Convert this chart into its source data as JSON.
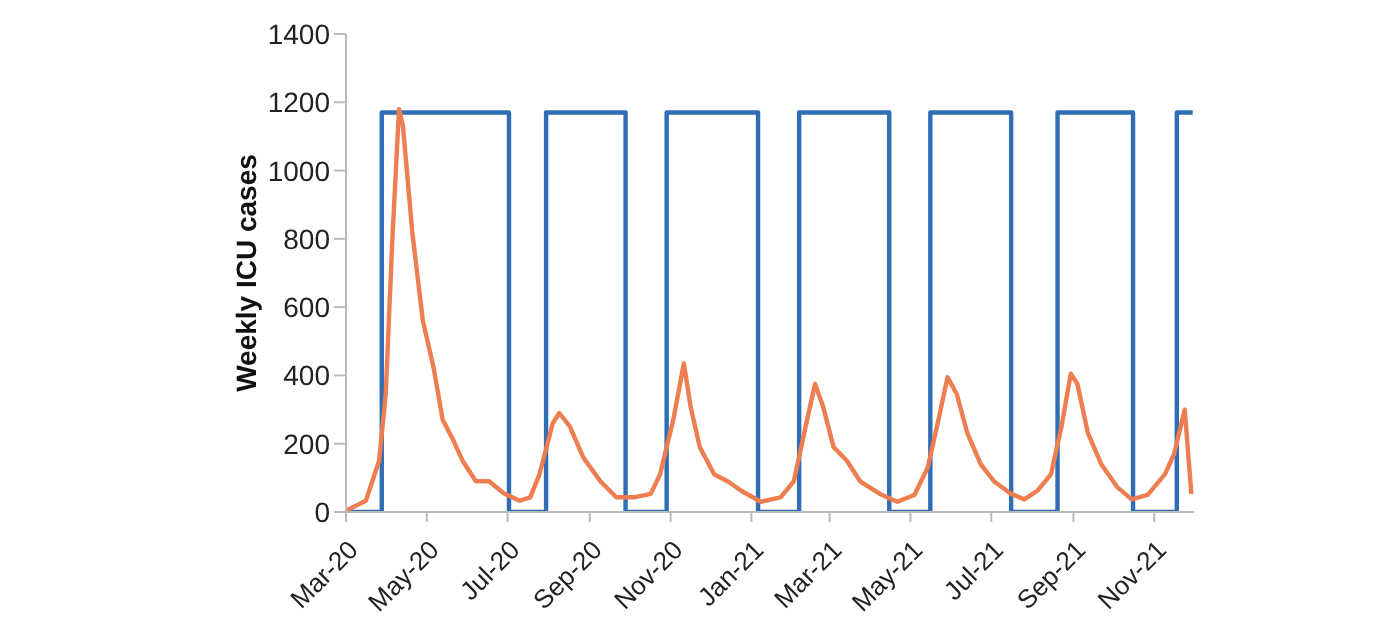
{
  "chart_data": {
    "type": "line",
    "ylabel": "Weekly ICU cases",
    "xlim": [
      "2020-03-01",
      "2021-12-01"
    ],
    "xticks": [
      {
        "value": "2020-03-01",
        "label": "Mar-20"
      },
      {
        "value": "2020-05-01",
        "label": "May-20"
      },
      {
        "value": "2020-07-01",
        "label": "Jul-20"
      },
      {
        "value": "2020-09-01",
        "label": "Sep-20"
      },
      {
        "value": "2020-11-01",
        "label": "Nov-20"
      },
      {
        "value": "2021-01-01",
        "label": "Jan-21"
      },
      {
        "value": "2021-03-01",
        "label": "Mar-21"
      },
      {
        "value": "2021-05-01",
        "label": "May-21"
      },
      {
        "value": "2021-07-01",
        "label": "Jul-21"
      },
      {
        "value": "2021-09-01",
        "label": "Sep-21"
      },
      {
        "value": "2021-11-01",
        "label": "Nov-21"
      }
    ],
    "ylim": [
      0,
      1400
    ],
    "yticks": [
      0,
      200,
      400,
      600,
      800,
      1000,
      1200,
      1400
    ],
    "grid": false,
    "legend": false,
    "marker": "none",
    "line_style": "solid",
    "series": [
      {
        "color": "#2f6eb5",
        "x": [
          "2020-03-01",
          "2020-03-28",
          "2020-03-28",
          "2020-07-02",
          "2020-07-02",
          "2020-07-30",
          "2020-07-30",
          "2020-09-28",
          "2020-09-28",
          "2020-10-29",
          "2020-10-29",
          "2021-01-06",
          "2021-01-06",
          "2021-02-06",
          "2021-02-06",
          "2021-04-15",
          "2021-04-15",
          "2021-05-16",
          "2021-05-16",
          "2021-07-16",
          "2021-07-16",
          "2021-08-20",
          "2021-08-20",
          "2021-10-16",
          "2021-10-16",
          "2021-11-18",
          "2021-11-18",
          "2021-11-30"
        ],
        "values": [
          0,
          0,
          1170,
          1170,
          0,
          0,
          1170,
          1170,
          0,
          0,
          1170,
          1170,
          0,
          0,
          1170,
          1170,
          0,
          0,
          1170,
          1170,
          0,
          0,
          1170,
          1170,
          0,
          0,
          1170,
          1170
        ]
      },
      {
        "color": "#ee7d4f",
        "x": [
          "2020-03-01",
          "2020-03-16",
          "2020-03-26",
          "2020-03-31",
          "2020-04-05",
          "2020-04-10",
          "2020-04-13",
          "2020-04-20",
          "2020-04-28",
          "2020-05-06",
          "2020-05-13",
          "2020-05-21",
          "2020-05-28",
          "2020-06-07",
          "2020-06-17",
          "2020-06-28",
          "2020-07-10",
          "2020-07-18",
          "2020-07-25",
          "2020-08-04",
          "2020-08-09",
          "2020-08-17",
          "2020-08-27",
          "2020-09-09",
          "2020-09-21",
          "2020-10-04",
          "2020-10-17",
          "2020-10-24",
          "2020-11-03",
          "2020-11-11",
          "2020-11-16",
          "2020-11-23",
          "2020-12-04",
          "2020-12-14",
          "2020-12-24",
          "2021-01-08",
          "2021-01-23",
          "2021-02-02",
          "2021-02-12",
          "2021-02-18",
          "2021-02-24",
          "2021-03-04",
          "2021-03-14",
          "2021-03-24",
          "2021-04-08",
          "2021-04-21",
          "2021-05-04",
          "2021-05-14",
          "2021-05-21",
          "2021-05-29",
          "2021-06-05",
          "2021-06-13",
          "2021-06-23",
          "2021-07-03",
          "2021-07-16",
          "2021-07-26",
          "2021-08-05",
          "2021-08-15",
          "2021-08-23",
          "2021-08-30",
          "2021-09-04",
          "2021-09-12",
          "2021-09-22",
          "2021-10-04",
          "2021-10-15",
          "2021-10-27",
          "2021-11-09",
          "2021-11-16",
          "2021-11-24",
          "2021-11-29"
        ],
        "values": [
          4,
          33,
          150,
          347,
          800,
          1180,
          1130,
          820,
          560,
          425,
          270,
          210,
          150,
          90,
          90,
          55,
          33,
          43,
          110,
          260,
          290,
          250,
          160,
          90,
          43,
          43,
          53,
          110,
          270,
          435,
          310,
          190,
          110,
          90,
          63,
          30,
          43,
          90,
          270,
          375,
          310,
          190,
          150,
          90,
          53,
          30,
          50,
          130,
          250,
          395,
          345,
          230,
          140,
          90,
          53,
          37,
          63,
          110,
          250,
          405,
          375,
          230,
          140,
          73,
          37,
          50,
          110,
          170,
          300,
          53
        ]
      }
    ]
  }
}
